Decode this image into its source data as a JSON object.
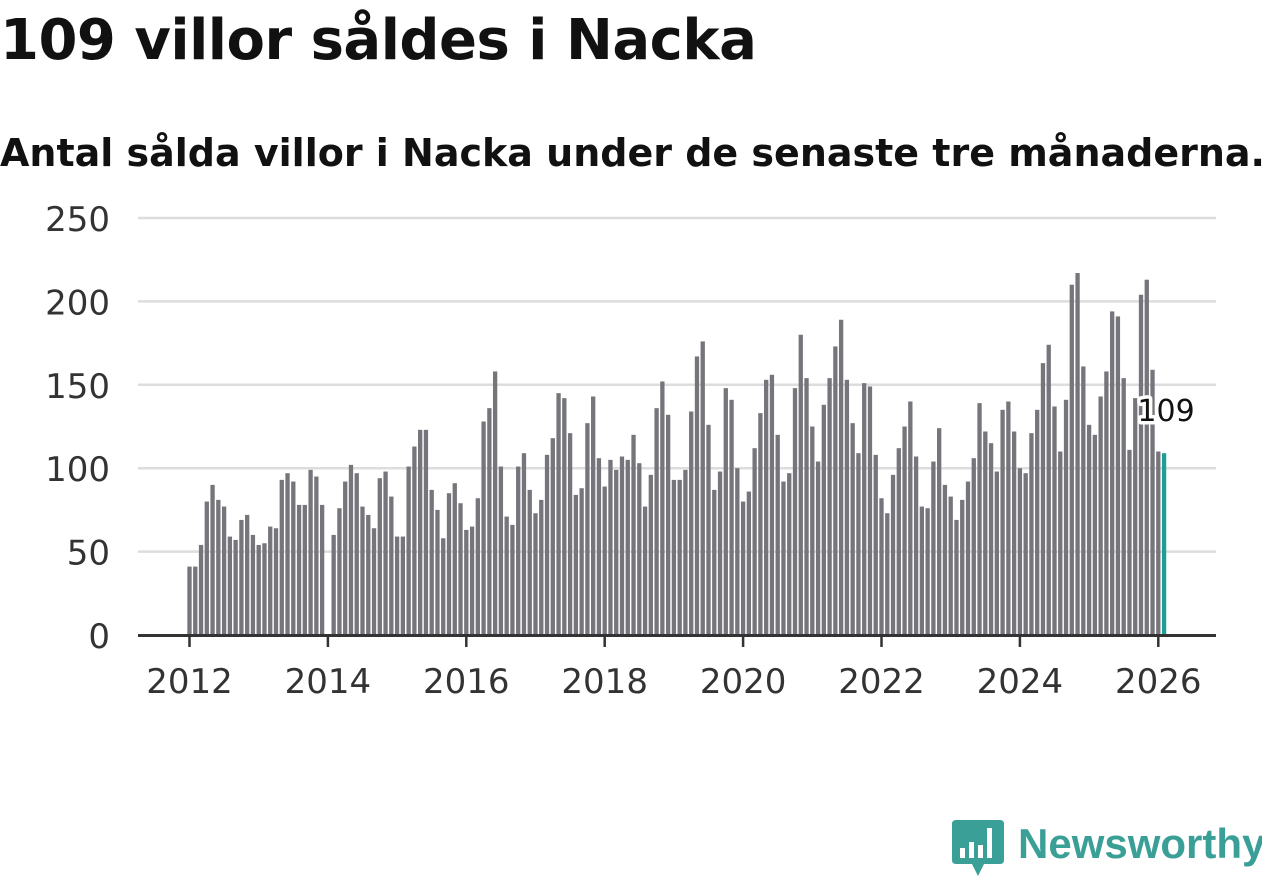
{
  "title": "109 villor såldes i Nacka",
  "subtitle": "Antal sålda villor i Nacka under de senaste tre månaderna.",
  "brand": "Newsworthy",
  "colors": {
    "bar": "#75757b",
    "highlight": "#1f9e94",
    "grid": "#dddddd",
    "axis": "#333333",
    "brand": "#3a9f96"
  },
  "chart_data": {
    "type": "bar",
    "title": "109 villor såldes i Nacka",
    "xlabel": "",
    "ylabel": "",
    "ylim": [
      0,
      250
    ],
    "yticks": [
      0,
      50,
      100,
      150,
      200,
      250
    ],
    "xticks": [
      {
        "label": "2012",
        "value": 2012
      },
      {
        "label": "2014",
        "value": 2014
      },
      {
        "label": "2016",
        "value": 2016
      },
      {
        "label": "2018",
        "value": 2018
      },
      {
        "label": "2020",
        "value": 2020
      },
      {
        "label": "2022",
        "value": 2022
      },
      {
        "label": "2024",
        "value": 2024
      },
      {
        "label": "2026",
        "value": 2026
      }
    ],
    "start_month": "2012-01",
    "highlight_label": "109",
    "values": [
      41,
      41,
      54,
      80,
      90,
      81,
      77,
      59,
      57,
      69,
      72,
      60,
      54,
      55,
      65,
      64,
      93,
      97,
      92,
      78,
      78,
      99,
      95,
      78,
      null,
      60,
      76,
      92,
      102,
      97,
      77,
      72,
      64,
      94,
      98,
      83,
      59,
      59,
      101,
      113,
      123,
      123,
      87,
      75,
      58,
      85,
      91,
      79,
      63,
      65,
      82,
      128,
      136,
      158,
      101,
      71,
      66,
      101,
      109,
      87,
      73,
      81,
      108,
      118,
      145,
      142,
      121,
      84,
      88,
      127,
      143,
      106,
      89,
      105,
      99,
      107,
      105,
      120,
      103,
      77,
      96,
      136,
      152,
      132,
      93,
      93,
      99,
      134,
      167,
      176,
      126,
      87,
      98,
      148,
      141,
      100,
      80,
      86,
      112,
      133,
      153,
      156,
      120,
      92,
      97,
      148,
      180,
      154,
      125,
      104,
      138,
      154,
      173,
      189,
      153,
      127,
      109,
      151,
      149,
      108,
      82,
      73,
      96,
      112,
      125,
      140,
      107,
      77,
      76,
      104,
      124,
      90,
      83,
      69,
      81,
      92,
      106,
      139,
      122,
      115,
      98,
      135,
      140,
      122,
      100,
      97,
      121,
      135,
      163,
      174,
      137,
      110,
      141,
      210,
      217,
      161,
      126,
      120,
      143,
      158,
      194,
      191,
      154,
      111,
      142,
      204,
      213,
      159,
      110,
      109
    ]
  }
}
